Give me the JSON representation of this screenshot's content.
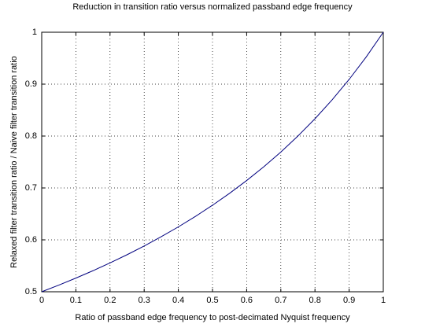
{
  "chart_data": {
    "type": "line",
    "title": "Reduction in transition ratio versus normalized passband edge frequency",
    "x_label": "Ratio of passband edge frequency to post-decimated Nyquist frequency",
    "y_label": "Relaxed filter transition ratio / Naive filter transition ratio",
    "x": [
      0,
      0.05,
      0.1,
      0.15,
      0.2,
      0.25,
      0.3,
      0.35,
      0.4,
      0.45,
      0.5,
      0.55,
      0.6,
      0.65,
      0.7,
      0.75,
      0.8,
      0.85,
      0.9,
      0.95,
      1
    ],
    "series": [
      {
        "color": "#00007f",
        "values": [
          0.5,
          0.5128,
          0.5263,
          0.5405,
          0.5556,
          0.5714,
          0.5882,
          0.6061,
          0.625,
          0.6452,
          0.6667,
          0.6897,
          0.7143,
          0.7407,
          0.7692,
          0.8,
          0.8333,
          0.8696,
          0.9091,
          0.9524,
          1
        ]
      }
    ],
    "xlim": [
      0,
      1
    ],
    "xticks": [
      0,
      0.1,
      0.2,
      0.3,
      0.4,
      0.5,
      0.6,
      0.7,
      0.8,
      0.9,
      1
    ],
    "ylim": [
      0.5,
      1
    ],
    "yticks": [
      0.5,
      0.6,
      0.7,
      0.8,
      0.9,
      1
    ],
    "grid": true
  }
}
